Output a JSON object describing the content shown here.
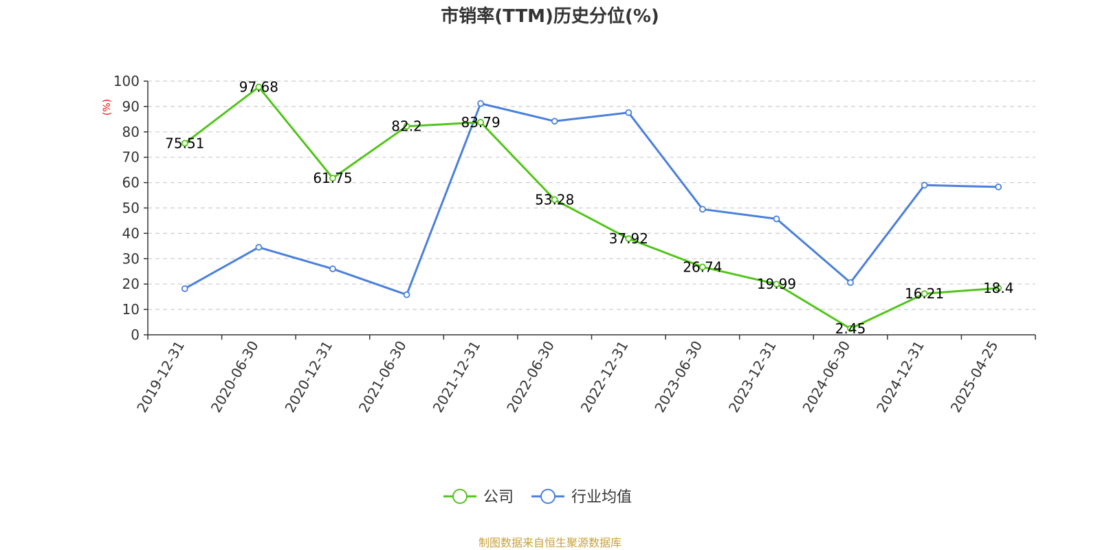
{
  "chart_data": {
    "type": "line",
    "title": "市销率(TTM)历史分位(%)",
    "ylabel": "(%)",
    "xlabel": "",
    "ylim": [
      0,
      100
    ],
    "yticks": [
      0,
      10,
      20,
      30,
      40,
      50,
      60,
      70,
      80,
      90,
      100
    ],
    "categories": [
      "2019-12-31",
      "2020-06-30",
      "2020-12-31",
      "2021-06-30",
      "2021-12-31",
      "2022-06-30",
      "2022-12-31",
      "2023-06-30",
      "2023-12-31",
      "2024-06-30",
      "2024-12-31",
      "2025-04-25"
    ],
    "series": [
      {
        "name": "公司",
        "color": "#52c41a",
        "show_labels": true,
        "values": [
          75.51,
          97.68,
          61.75,
          82.2,
          83.79,
          53.28,
          37.92,
          26.74,
          19.99,
          2.45,
          16.21,
          18.4
        ],
        "labels": [
          "75.51",
          "97.68",
          "61.75",
          "82.2",
          "83.79",
          "53.28",
          "37.92",
          "26.74",
          "19.99",
          "2.45",
          "16.21",
          "18.4"
        ]
      },
      {
        "name": "行业均值",
        "color": "#4a7fdb",
        "show_labels": false,
        "values": [
          18.2,
          34.5,
          26.0,
          15.8,
          91.2,
          84.2,
          87.6,
          49.5,
          45.7,
          20.6,
          59.0,
          58.3
        ]
      }
    ],
    "grid": true,
    "grid_style": "dashed",
    "legend_position": "bottom-center",
    "source": "制图数据来自恒生聚源数据库"
  }
}
